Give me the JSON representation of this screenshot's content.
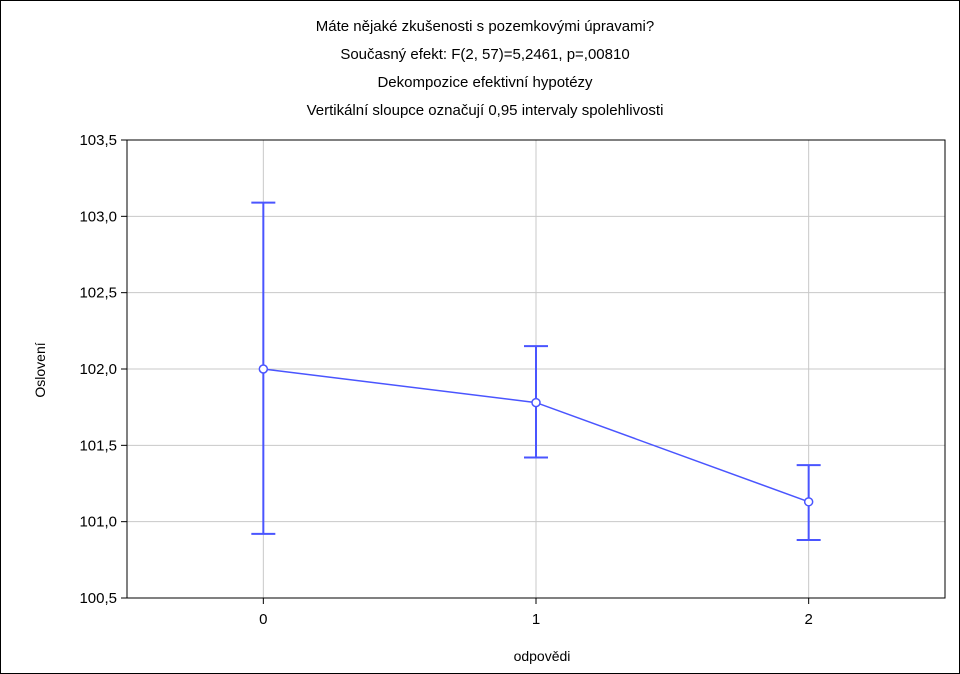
{
  "chart_data": {
    "type": "line",
    "title_lines": [
      "Máte nějaké zkušenosti s pozemkovými úpravami?",
      "Současný efekt: F(2, 57)=5,2461, p=,00810",
      "Dekompozice efektivní hypotézy",
      "Vertikální sloupce označují 0,95 intervaly spolehlivosti"
    ],
    "xlabel": "odpovědi",
    "ylabel": "Oslovení",
    "categories": [
      "0",
      "1",
      "2"
    ],
    "x_range": [
      -0.5,
      2.5
    ],
    "ylim": [
      100.5,
      103.5
    ],
    "y_ticks": [
      100.5,
      101.0,
      101.5,
      102.0,
      102.5,
      103.0,
      103.5
    ],
    "y_tick_labels": [
      "100,5",
      "101,0",
      "101,5",
      "102,0",
      "102,5",
      "103,0",
      "103,5"
    ],
    "grid": true,
    "series": [
      {
        "values": [
          102.0,
          101.78,
          101.13
        ],
        "ci_lower": [
          100.92,
          101.42,
          100.88
        ],
        "ci_upper": [
          103.09,
          102.15,
          101.37
        ],
        "color": "#4a55ff"
      }
    ]
  }
}
